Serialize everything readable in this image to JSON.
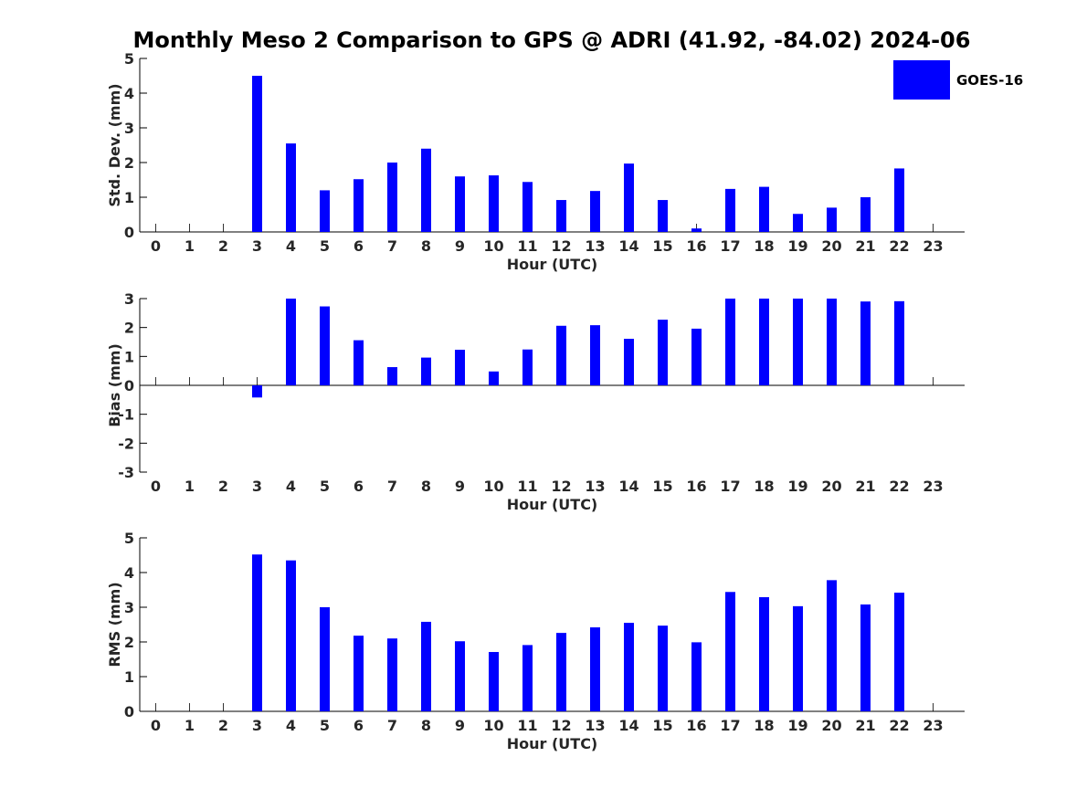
{
  "title": "Monthly Meso 2 Comparison to GPS @ ADRI (41.92, -84.02) 2024-06",
  "legend": {
    "label": "GOES-16",
    "color": "#0000ff"
  },
  "chart_data": [
    {
      "type": "bar",
      "categories": [
        "0",
        "1",
        "2",
        "3",
        "4",
        "5",
        "6",
        "7",
        "8",
        "9",
        "10",
        "11",
        "12",
        "13",
        "14",
        "15",
        "16",
        "17",
        "18",
        "19",
        "20",
        "21",
        "22",
        "23"
      ],
      "series": [
        {
          "name": "GOES-16",
          "values": [
            null,
            null,
            null,
            4.5,
            2.55,
            1.2,
            1.52,
            2.0,
            2.4,
            1.6,
            1.63,
            1.44,
            0.92,
            1.18,
            1.97,
            0.92,
            0.1,
            1.24,
            1.3,
            0.52,
            0.7,
            1.0,
            1.83,
            null
          ]
        }
      ],
      "xlabel": "Hour (UTC)",
      "ylabel": "Std. Dev. (mm)",
      "ylim": [
        0,
        5
      ],
      "yticks": [
        "0",
        "1",
        "2",
        "3",
        "4",
        "5"
      ],
      "grid": false,
      "legend_position": "top-right"
    },
    {
      "type": "bar",
      "categories": [
        "0",
        "1",
        "2",
        "3",
        "4",
        "5",
        "6",
        "7",
        "8",
        "9",
        "10",
        "11",
        "12",
        "13",
        "14",
        "15",
        "16",
        "17",
        "18",
        "19",
        "20",
        "21",
        "22",
        "23"
      ],
      "series": [
        {
          "name": "GOES-16",
          "values": [
            null,
            null,
            null,
            -0.42,
            3.0,
            2.73,
            1.56,
            0.63,
            0.96,
            1.23,
            0.48,
            1.24,
            2.06,
            2.08,
            1.61,
            2.27,
            1.96,
            3.0,
            3.0,
            3.0,
            3.0,
            2.9,
            2.91,
            null
          ]
        }
      ],
      "xlabel": "Hour (UTC)",
      "ylabel": "Bias (mm)",
      "ylim": [
        -3,
        3
      ],
      "yticks": [
        "-3",
        "-2",
        "-1",
        "0",
        "1",
        "2",
        "3"
      ],
      "grid": false
    },
    {
      "type": "bar",
      "categories": [
        "0",
        "1",
        "2",
        "3",
        "4",
        "5",
        "6",
        "7",
        "8",
        "9",
        "10",
        "11",
        "12",
        "13",
        "14",
        "15",
        "16",
        "17",
        "18",
        "19",
        "20",
        "21",
        "22",
        "23"
      ],
      "series": [
        {
          "name": "GOES-16",
          "values": [
            null,
            null,
            null,
            4.52,
            4.35,
            3.0,
            2.18,
            2.1,
            2.58,
            2.02,
            1.71,
            1.91,
            2.26,
            2.42,
            2.55,
            2.47,
            1.99,
            3.44,
            3.29,
            3.03,
            3.78,
            3.08,
            3.42,
            null
          ]
        }
      ],
      "xlabel": "Hour (UTC)",
      "ylabel": "RMS (mm)",
      "ylim": [
        0,
        5
      ],
      "yticks": [
        "0",
        "1",
        "2",
        "3",
        "4",
        "5"
      ],
      "grid": false
    }
  ]
}
